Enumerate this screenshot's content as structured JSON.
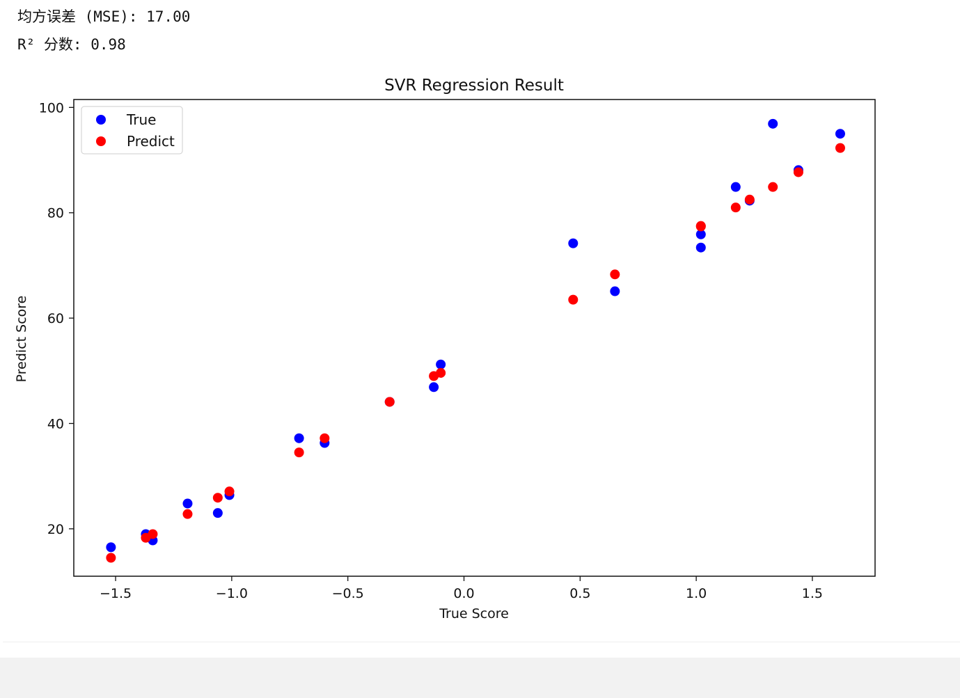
{
  "stdout": {
    "mse_line": "均方误差 (MSE): 17.00",
    "r2_line": "R² 分数: 0.98"
  },
  "chart_data": {
    "type": "scatter",
    "title": "SVR Regression Result",
    "xlabel": "True Score",
    "ylabel": "Predict Score",
    "xlim": [
      -1.68,
      1.77
    ],
    "ylim": [
      11,
      101.5
    ],
    "xticks": [
      -1.5,
      -1.0,
      -0.5,
      0.0,
      0.5,
      1.0,
      1.5
    ],
    "xtick_labels": [
      "−1.5",
      "−1.0",
      "−0.5",
      "0.0",
      "0.5",
      "1.0",
      "1.5"
    ],
    "yticks": [
      20,
      40,
      60,
      80,
      100
    ],
    "ytick_labels": [
      "20",
      "40",
      "60",
      "80",
      "100"
    ],
    "legend_position": "upper-left",
    "grid": false,
    "series": [
      {
        "name": "True",
        "color": "#0000ff",
        "points": [
          [
            -1.52,
            16.5
          ],
          [
            -1.37,
            19.0
          ],
          [
            -1.34,
            17.8
          ],
          [
            -1.19,
            24.8
          ],
          [
            -1.06,
            23.0
          ],
          [
            -1.01,
            26.4
          ],
          [
            -0.71,
            37.2
          ],
          [
            -0.6,
            36.3
          ],
          [
            -0.32,
            44.1
          ],
          [
            -0.13,
            46.9
          ],
          [
            -0.1,
            51.2
          ],
          [
            0.47,
            74.2
          ],
          [
            0.65,
            65.1
          ],
          [
            1.02,
            75.9
          ],
          [
            1.02,
            73.4
          ],
          [
            1.17,
            84.9
          ],
          [
            1.23,
            82.3
          ],
          [
            1.33,
            96.9
          ],
          [
            1.44,
            88.1
          ],
          [
            1.62,
            95.0
          ]
        ]
      },
      {
        "name": "Predict",
        "color": "#ff0000",
        "points": [
          [
            -1.52,
            14.5
          ],
          [
            -1.37,
            18.3
          ],
          [
            -1.34,
            19.0
          ],
          [
            -1.19,
            22.8
          ],
          [
            -1.06,
            25.9
          ],
          [
            -1.01,
            27.1
          ],
          [
            -0.71,
            34.5
          ],
          [
            -0.6,
            37.2
          ],
          [
            -0.32,
            44.1
          ],
          [
            -0.13,
            49.0
          ],
          [
            -0.1,
            49.6
          ],
          [
            0.47,
            63.5
          ],
          [
            0.65,
            68.3
          ],
          [
            1.02,
            77.5
          ],
          [
            1.02,
            77.4
          ],
          [
            1.17,
            81.0
          ],
          [
            1.23,
            82.5
          ],
          [
            1.33,
            84.9
          ],
          [
            1.44,
            87.7
          ],
          [
            1.62,
            92.3
          ]
        ]
      }
    ]
  }
}
